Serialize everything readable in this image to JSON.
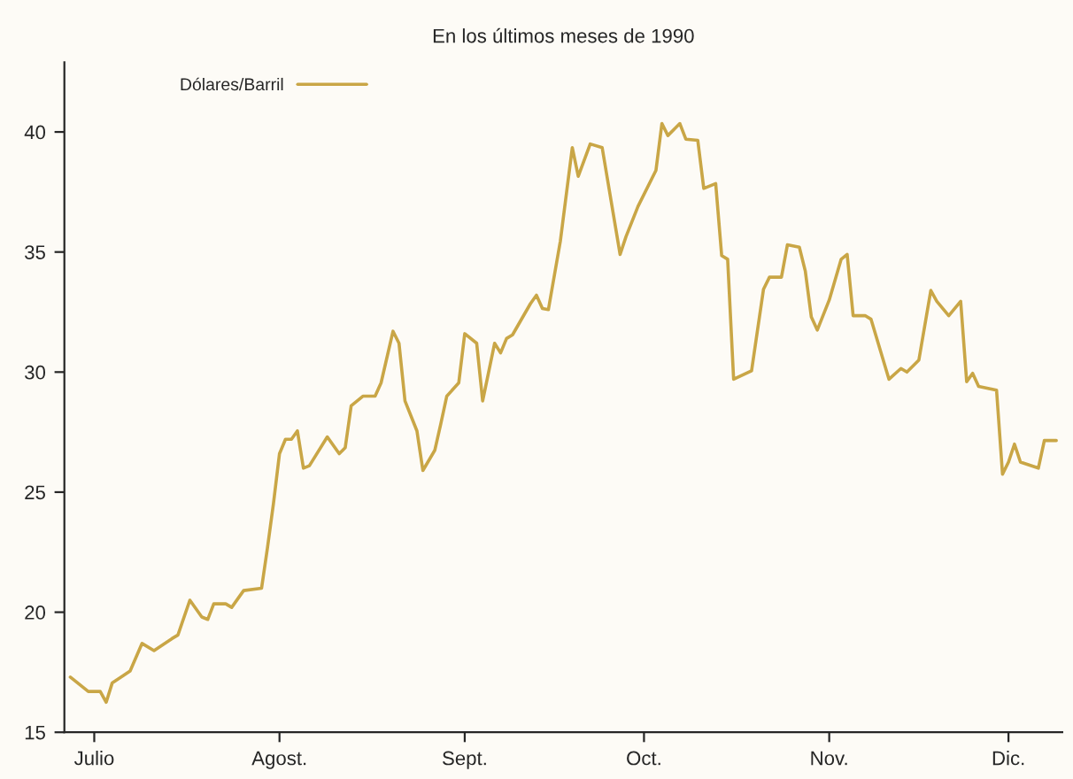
{
  "chart_data": {
    "type": "line",
    "subtitle": "En los últimos meses de 1990",
    "x": [
      "1990-06-27",
      "1990-06-30",
      "1990-07-02",
      "1990-07-03",
      "1990-07-04",
      "1990-07-07",
      "1990-07-09",
      "1990-07-11",
      "1990-07-14",
      "1990-07-15",
      "1990-07-17",
      "1990-07-19",
      "1990-07-20",
      "1990-07-21",
      "1990-07-23",
      "1990-07-24",
      "1990-07-26",
      "1990-07-29",
      "1990-07-30",
      "1990-07-31",
      "1990-08-01",
      "1990-08-02",
      "1990-08-03",
      "1990-08-04",
      "1990-08-05",
      "1990-08-06",
      "1990-08-09",
      "1990-08-11",
      "1990-08-12",
      "1990-08-13",
      "1990-08-15",
      "1990-08-17",
      "1990-08-18",
      "1990-08-20",
      "1990-08-21",
      "1990-08-22",
      "1990-08-24",
      "1990-08-25",
      "1990-08-27",
      "1990-08-28",
      "1990-08-29",
      "1990-08-31",
      "1990-09-01",
      "1990-09-03",
      "1990-09-04",
      "1990-09-06",
      "1990-09-07",
      "1990-09-08",
      "1990-09-09",
      "1990-09-12",
      "1990-09-13",
      "1990-09-14",
      "1990-09-15",
      "1990-09-17",
      "1990-09-19",
      "1990-09-20",
      "1990-09-22",
      "1990-09-24",
      "1990-09-27",
      "1990-09-28",
      "1990-09-30",
      "1990-10-03",
      "1990-10-04",
      "1990-10-05",
      "1990-10-07",
      "1990-10-08",
      "1990-10-10",
      "1990-10-11",
      "1990-10-13",
      "1990-10-14",
      "1990-10-15",
      "1990-10-16",
      "1990-10-19",
      "1990-10-21",
      "1990-10-22",
      "1990-10-24",
      "1990-10-25",
      "1990-10-27",
      "1990-10-28",
      "1990-10-29",
      "1990-10-30",
      "1990-11-01",
      "1990-11-03",
      "1990-11-04",
      "1990-11-05",
      "1990-11-07",
      "1990-11-08",
      "1990-11-11",
      "1990-11-13",
      "1990-11-14",
      "1990-11-16",
      "1990-11-18",
      "1990-11-19",
      "1990-11-21",
      "1990-11-23",
      "1990-11-24",
      "1990-11-25",
      "1990-11-26",
      "1990-11-29",
      "1990-11-30",
      "1990-12-01",
      "1990-12-02",
      "1990-12-03",
      "1990-12-06",
      "1990-12-07",
      "1990-12-09"
    ],
    "series": [
      {
        "name": "Dólares/Barril",
        "color": "#c9a646",
        "values": [
          17.3,
          16.7,
          16.7,
          16.25,
          17.05,
          17.55,
          18.7,
          18.4,
          18.9,
          19.05,
          20.5,
          19.8,
          19.7,
          20.35,
          20.35,
          20.2,
          20.9,
          21.0,
          22.7,
          24.55,
          26.6,
          27.2,
          27.2,
          27.55,
          26.0,
          26.1,
          27.3,
          26.6,
          26.85,
          28.6,
          29.0,
          29.0,
          29.55,
          31.7,
          31.2,
          28.8,
          27.55,
          25.9,
          26.75,
          27.85,
          29.0,
          29.55,
          31.6,
          31.2,
          28.8,
          31.2,
          30.8,
          31.4,
          31.55,
          32.85,
          33.2,
          32.65,
          32.6,
          35.45,
          39.35,
          38.15,
          39.5,
          39.35,
          34.9,
          35.65,
          36.9,
          38.4,
          40.35,
          39.85,
          40.35,
          39.7,
          39.65,
          37.65,
          37.85,
          34.85,
          34.7,
          29.7,
          30.05,
          33.45,
          33.95,
          33.95,
          35.3,
          35.2,
          34.2,
          32.3,
          31.75,
          33.0,
          34.7,
          34.9,
          32.35,
          32.35,
          32.2,
          29.7,
          30.15,
          30.0,
          30.5,
          33.4,
          32.95,
          32.35,
          32.95,
          29.6,
          29.95,
          29.4,
          29.25,
          25.75,
          26.25,
          27.0,
          26.25,
          26.0,
          27.15,
          27.15
        ]
      }
    ],
    "xlim": [
      "1990-06-26",
      "1990-12-10"
    ],
    "xticks": [
      {
        "value": "1990-07-01",
        "label": "Julio"
      },
      {
        "value": "1990-08-01",
        "label": "Agost."
      },
      {
        "value": "1990-09-01",
        "label": "Sept."
      },
      {
        "value": "1990-10-01",
        "label": "Oct."
      },
      {
        "value": "1990-11-01",
        "label": "Nov."
      },
      {
        "value": "1990-12-01",
        "label": "Dic."
      }
    ],
    "ylim": [
      15,
      42.9
    ],
    "yticks": [
      15,
      20,
      25,
      30,
      35,
      40
    ],
    "grid": false,
    "legend": "top left",
    "marker": "none",
    "line_style": "solid"
  }
}
